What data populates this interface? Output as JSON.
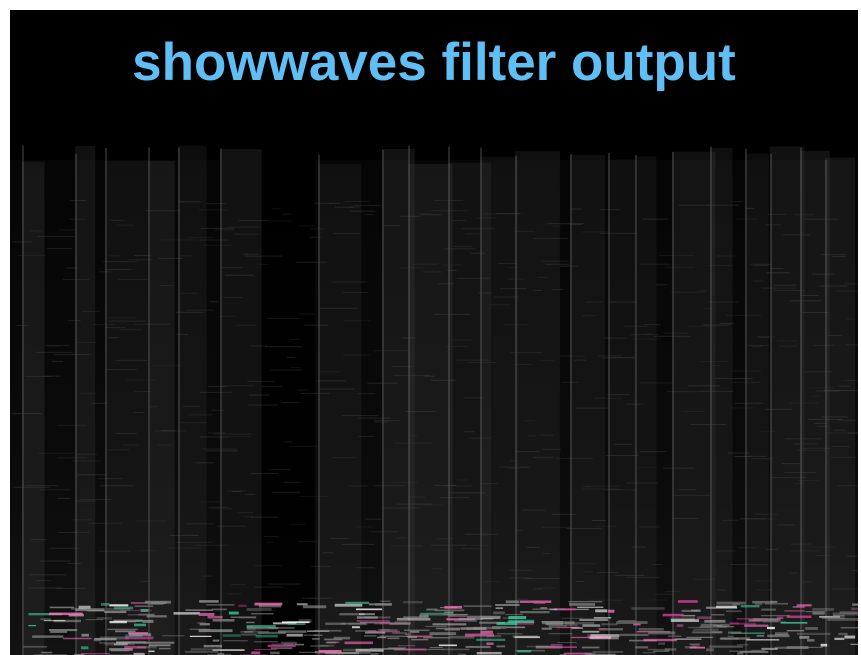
{
  "title": "showwaves filter output"
}
